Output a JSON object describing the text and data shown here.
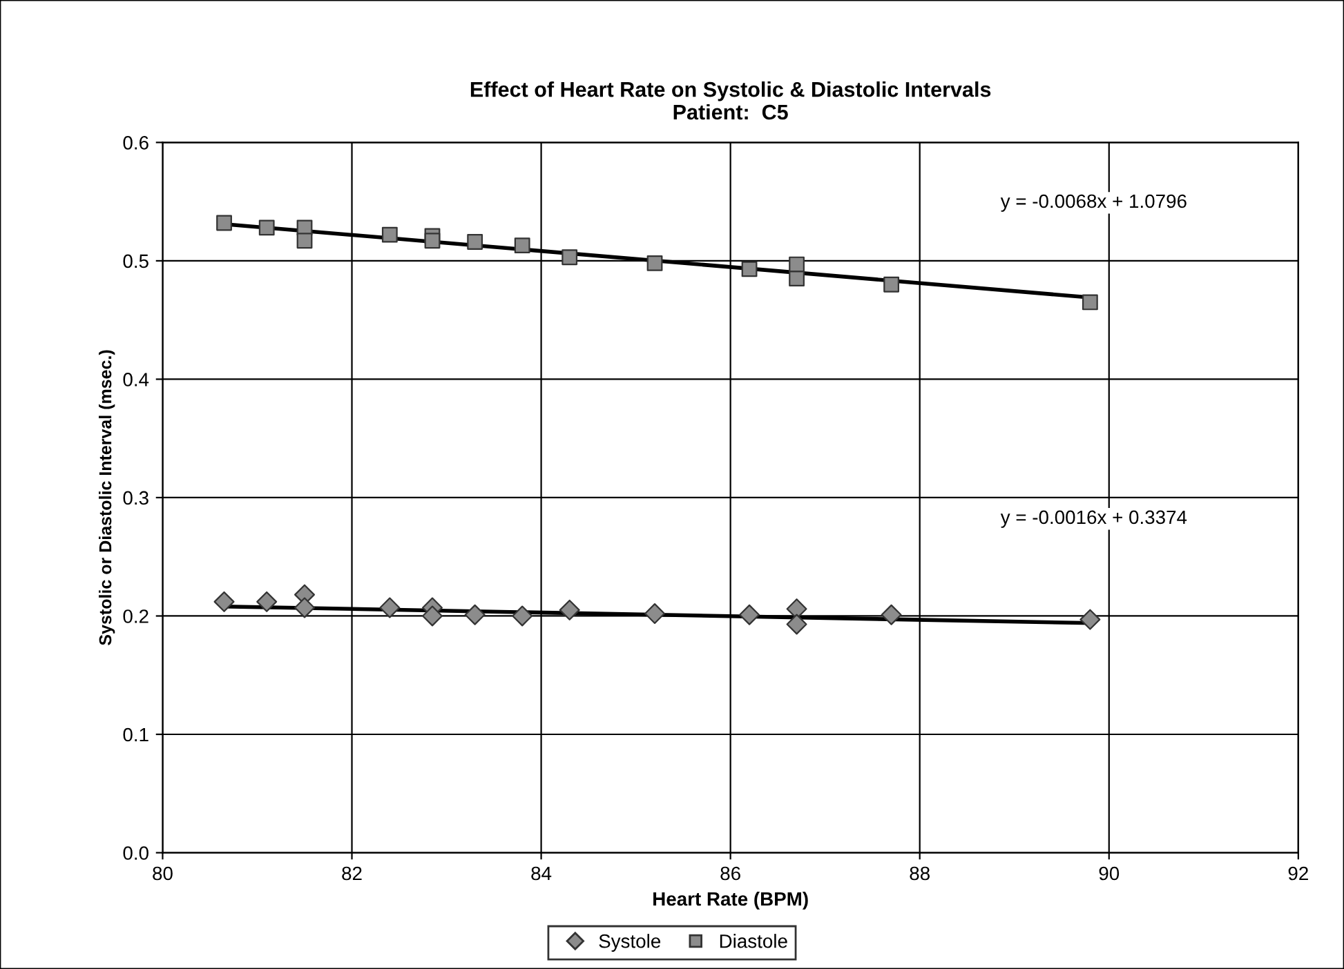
{
  "chart_data": {
    "type": "scatter",
    "title": "Effect of Heart Rate on Systolic & Diastolic Intervals\nPatient:  C5",
    "xlabel": "Heart Rate (BPM)",
    "ylabel": "Systolic or Diastolic Interval (msec.)",
    "xlim": [
      80,
      92
    ],
    "xticks": [
      80,
      82,
      84,
      86,
      88,
      90,
      92
    ],
    "ylim": [
      0.0,
      0.6
    ],
    "yticks": [
      {
        "value": 0.0,
        "label": "0.0"
      },
      {
        "value": 0.1,
        "label": "0.1"
      },
      {
        "value": 0.2,
        "label": "0.2"
      },
      {
        "value": 0.3,
        "label": "0.3"
      },
      {
        "value": 0.4,
        "label": "0.4"
      },
      {
        "value": 0.5,
        "label": "0.5"
      },
      {
        "value": 0.6,
        "label": "0.6"
      }
    ],
    "grid": true,
    "legend": "bottom",
    "series": [
      {
        "name": "Systole",
        "color": "#8c8c8c",
        "marker": "diamond",
        "x": [
          80.65,
          81.1,
          81.5,
          81.5,
          82.4,
          82.85,
          82.85,
          83.3,
          83.8,
          84.3,
          85.2,
          86.2,
          86.7,
          86.7,
          87.7,
          89.8
        ],
        "values": [
          0.212,
          0.212,
          0.218,
          0.207,
          0.207,
          0.207,
          0.2,
          0.201,
          0.2,
          0.205,
          0.202,
          0.201,
          0.206,
          0.193,
          0.201,
          0.197
        ]
      },
      {
        "name": "Diastole",
        "color": "#8c8c8c",
        "marker": "square",
        "x": [
          80.65,
          81.1,
          81.5,
          81.5,
          82.4,
          82.85,
          82.85,
          83.3,
          83.8,
          84.3,
          85.2,
          86.2,
          86.7,
          86.7,
          87.7,
          89.8
        ],
        "values": [
          0.532,
          0.528,
          0.528,
          0.517,
          0.522,
          0.521,
          0.517,
          0.516,
          0.513,
          0.503,
          0.498,
          0.493,
          0.497,
          0.485,
          0.48,
          0.465
        ]
      },
      {
        "type": "line",
        "color": "#000000",
        "marker": "none",
        "x": [
          80.65,
          89.8
        ],
        "values": [
          0.208,
          0.194
        ]
      },
      {
        "type": "line",
        "color": "#000000",
        "marker": "none",
        "x": [
          80.65,
          89.8
        ],
        "values": [
          0.531,
          0.469
        ]
      }
    ],
    "annotations": [
      "y = -0.0016x + 0.3374",
      "y = -0.0068x + 1.0796"
    ]
  }
}
